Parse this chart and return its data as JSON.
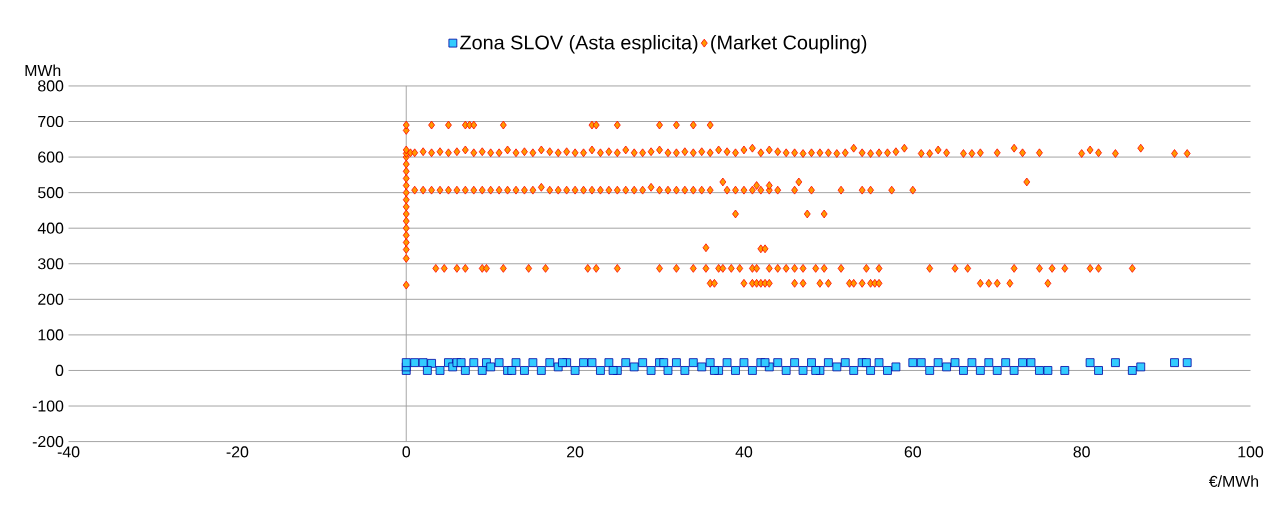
{
  "chart_data": {
    "type": "scatter",
    "xlabel": "€/MWh",
    "ylabel": "MWh",
    "xlim": [
      -40,
      100
    ],
    "xticks": [
      -40,
      -20,
      0,
      20,
      40,
      60,
      80,
      100
    ],
    "ylim": [
      -200,
      800
    ],
    "yticks": [
      -200,
      -100,
      0,
      100,
      200,
      300,
      400,
      500,
      600,
      700,
      800
    ],
    "grid": "y",
    "legend": "top",
    "ref_lines": [
      {
        "axis": "x",
        "value": 0,
        "color": "#a0a0a0"
      }
    ],
    "series": [
      {
        "name": "Zona SLOV (Asta esplicita)",
        "color": "#33ccff",
        "marker": "square",
        "x": [
          0,
          0,
          0,
          1,
          2,
          3,
          4,
          5,
          5.5,
          6,
          7,
          8,
          9,
          9.5,
          10,
          11,
          12,
          13,
          14,
          15,
          16,
          17,
          18,
          19,
          20,
          21,
          22,
          23,
          24,
          25,
          26,
          27,
          28,
          29,
          30,
          31,
          32,
          33,
          34,
          35,
          36,
          37,
          38,
          39,
          40,
          41,
          42,
          43,
          44,
          45,
          46,
          47,
          48,
          49,
          50,
          51,
          52,
          53,
          54,
          55,
          56,
          57,
          58,
          60,
          61,
          62,
          63,
          64,
          65,
          66,
          67,
          68,
          69,
          70,
          71,
          72,
          73,
          74,
          75,
          76,
          78,
          81,
          82,
          84,
          86,
          87,
          91,
          92.5,
          2.5,
          6.5,
          12.5,
          18.5,
          24.5,
          30.5,
          36.5,
          42.5,
          48.5,
          54.5
        ],
        "values": [
          0,
          10,
          22,
          22,
          22,
          20,
          0,
          22,
          10,
          22,
          0,
          22,
          0,
          22,
          10,
          22,
          0,
          22,
          0,
          22,
          0,
          22,
          10,
          22,
          0,
          22,
          22,
          0,
          22,
          0,
          22,
          10,
          22,
          0,
          22,
          0,
          22,
          0,
          22,
          10,
          22,
          0,
          22,
          0,
          22,
          0,
          22,
          10,
          22,
          0,
          22,
          0,
          22,
          0,
          22,
          10,
          22,
          0,
          22,
          0,
          22,
          0,
          10,
          22,
          22,
          0,
          22,
          10,
          22,
          0,
          22,
          0,
          22,
          0,
          22,
          0,
          22,
          22,
          0,
          0,
          0,
          22,
          0,
          22,
          0,
          10,
          22,
          22,
          0,
          22,
          0,
          22,
          0,
          22,
          0,
          22,
          0,
          22
        ]
      },
      {
        "name": "(Market Coupling)",
        "color": "#ff9900",
        "marker": "diamond",
        "x": [
          0,
          0,
          0,
          0,
          0,
          0,
          0,
          0,
          0,
          0,
          0,
          0,
          0,
          0,
          0,
          0,
          0,
          0,
          0,
          0,
          0.5,
          1,
          2,
          3,
          4,
          5,
          6,
          7,
          8,
          9,
          10,
          11,
          12,
          13,
          14,
          15,
          16,
          17,
          18,
          19,
          20,
          21,
          22,
          23,
          24,
          25,
          26,
          27,
          28,
          29,
          30,
          31,
          32,
          33,
          34,
          35,
          36,
          37,
          38,
          39,
          40,
          41,
          42,
          43,
          44,
          45,
          46,
          47,
          48,
          49,
          50,
          51,
          52,
          53,
          54,
          55,
          56,
          57,
          58,
          59,
          61,
          62,
          63,
          64,
          66,
          67,
          68,
          70,
          72,
          73,
          75,
          80,
          81,
          82,
          84,
          87,
          91,
          92.5,
          1,
          2,
          3,
          4,
          5,
          6,
          7,
          8,
          9,
          10,
          11,
          12,
          13,
          14,
          15,
          16,
          17,
          18,
          19,
          20,
          21,
          22,
          23,
          24,
          25,
          26,
          27,
          28,
          29,
          30,
          31,
          32,
          33,
          34,
          35,
          36,
          38,
          39,
          40,
          41,
          42,
          43,
          44,
          46,
          48,
          51.5,
          54,
          55,
          57.5,
          60,
          3,
          5,
          7,
          7.5,
          8,
          11.5,
          22,
          22.5,
          25,
          30,
          32,
          34,
          36,
          3.5,
          4.5,
          6,
          7,
          9,
          9.5,
          11.5,
          14.5,
          16.5,
          21.5,
          22.5,
          25,
          30,
          32,
          34,
          35.5,
          37,
          37.5,
          38.5,
          39.5,
          41,
          41.5,
          43,
          44,
          45,
          46,
          47,
          48.5,
          49.5,
          51.5,
          54.5,
          56,
          62,
          65,
          66.5,
          72,
          75,
          76.5,
          78,
          81,
          82,
          86,
          36,
          36.5,
          40,
          41,
          41.5,
          42,
          42.5,
          43,
          46,
          47,
          49,
          50,
          52.5,
          53,
          54,
          55,
          55.5,
          56,
          68,
          69,
          70,
          71.5,
          76,
          35.5,
          42,
          42.5,
          39,
          47.5,
          49.5,
          37.5,
          46.5,
          73.5,
          41.5,
          43
        ],
        "values": [
          240,
          315,
          340,
          360,
          380,
          400,
          420,
          440,
          460,
          480,
          500,
          520,
          540,
          560,
          580,
          600,
          610,
          620,
          675,
          690,
          612,
          612,
          615,
          612,
          615,
          612,
          615,
          620,
          612,
          615,
          612,
          612,
          620,
          612,
          615,
          612,
          620,
          615,
          612,
          615,
          612,
          612,
          620,
          612,
          615,
          612,
          620,
          612,
          612,
          615,
          620,
          612,
          612,
          615,
          612,
          615,
          612,
          620,
          615,
          612,
          620,
          625,
          612,
          620,
          615,
          612,
          612,
          610,
          612,
          612,
          612,
          610,
          612,
          625,
          612,
          610,
          612,
          612,
          615,
          625,
          610,
          610,
          620,
          612,
          610,
          610,
          612,
          612,
          625,
          612,
          612,
          610,
          620,
          612,
          610,
          625,
          610,
          610,
          507,
          507,
          507,
          507,
          507,
          507,
          507,
          507,
          507,
          507,
          507,
          507,
          507,
          507,
          507,
          515,
          507,
          507,
          507,
          507,
          507,
          507,
          507,
          507,
          507,
          507,
          507,
          507,
          515,
          507,
          507,
          507,
          507,
          507,
          507,
          507,
          507,
          507,
          507,
          507,
          507,
          507,
          507,
          507,
          507,
          507,
          507,
          507,
          507,
          507,
          690,
          690,
          690,
          690,
          690,
          690,
          690,
          690,
          690,
          690,
          690,
          690,
          690,
          287,
          287,
          287,
          287,
          287,
          287,
          287,
          287,
          287,
          287,
          287,
          287,
          287,
          287,
          287,
          287,
          287,
          287,
          287,
          287,
          287,
          287,
          287,
          287,
          287,
          287,
          287,
          287,
          287,
          287,
          287,
          287,
          287,
          287,
          287,
          287,
          287,
          287,
          287,
          287,
          287,
          287,
          245,
          245,
          245,
          245,
          245,
          245,
          245,
          245,
          245,
          245,
          245,
          245,
          245,
          245,
          245,
          245,
          245,
          245,
          245,
          245,
          245,
          245,
          245,
          345,
          342,
          342,
          440,
          440,
          440,
          530,
          530,
          530,
          520,
          520
        ]
      }
    ]
  }
}
